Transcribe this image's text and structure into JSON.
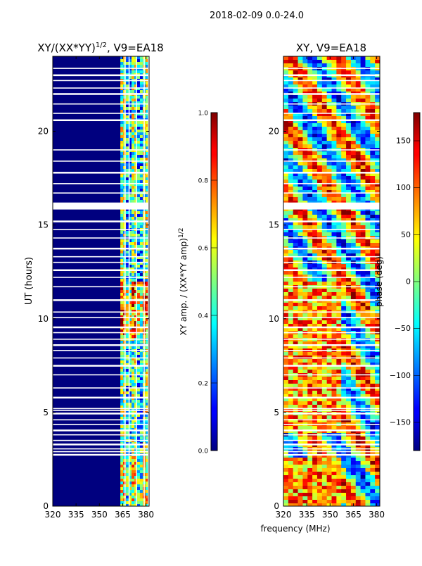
{
  "chart_data": [
    {
      "type": "heatmap",
      "title": "XY/(XX*YY)",
      "title_exponent": "1/2",
      "title_suffix": ", V9=EA18",
      "xlabel": "frequency (MHz)",
      "ylabel": "UT (hours)",
      "xlim": [
        320,
        382
      ],
      "ylim": [
        0,
        24
      ],
      "x_ticks": [
        "320",
        "335",
        "350",
        "365",
        "380"
      ],
      "x_tick_values": [
        320,
        335,
        350,
        365,
        380
      ],
      "y_ticks": [
        "0",
        "5",
        "10",
        "15",
        "20"
      ],
      "y_tick_values": [
        0,
        5,
        10,
        15,
        20
      ],
      "colorbar": {
        "label": "XY amp. / (XX*YY amp)",
        "label_exponent": "1/2",
        "range": [
          0.0,
          1.0
        ],
        "ticks": [
          "0.0",
          "0.2",
          "0.4",
          "0.6",
          "0.8",
          "1.0"
        ],
        "tick_values": [
          0.0,
          0.2,
          0.4,
          0.6,
          0.8,
          1.0
        ],
        "colormap": "jet"
      }
    },
    {
      "type": "heatmap",
      "title": "XY, V9=EA18",
      "xlabel": "frequency (MHz)",
      "ylabel": "",
      "xlim": [
        320,
        382
      ],
      "ylim": [
        0,
        24
      ],
      "x_ticks": [
        "320",
        "335",
        "350",
        "365",
        "380"
      ],
      "x_tick_values": [
        320,
        335,
        350,
        365,
        380
      ],
      "y_ticks": [
        "0",
        "5",
        "10",
        "15",
        "20"
      ],
      "y_tick_values": [
        0,
        5,
        10,
        15,
        20
      ],
      "colorbar": {
        "label": "phase (deg)",
        "range": [
          -180,
          180
        ],
        "ticks": [
          "−150",
          "−100",
          "−50",
          "0",
          "50",
          "100",
          "150"
        ],
        "tick_values": [
          -150,
          -100,
          -50,
          0,
          50,
          100,
          150
        ],
        "colormap": "jet"
      }
    }
  ],
  "figure": {
    "suptitle": "2018-02-09 0.0-24.0",
    "xlabel": "frequency (MHz)"
  },
  "gap_hours_utc": [
    2.75,
    2.9,
    3.05,
    3.3,
    3.5,
    3.8,
    4.05,
    4.35,
    4.6,
    4.95,
    5.1,
    5.2,
    5.8,
    6.3,
    7.0,
    7.5,
    7.9,
    8.3,
    8.6,
    8.9,
    9.25,
    9.55,
    10.05,
    10.35,
    11.0,
    11.7,
    12.2,
    12.6,
    13.0,
    13.3,
    13.75,
    14.3,
    14.75,
    15.2,
    15.85,
    16.05,
    16.15,
    16.7,
    17.2,
    17.8,
    18.4,
    19.0,
    20.6,
    20.95,
    21.45,
    22.0,
    22.3,
    22.7,
    23.0,
    23.35
  ]
}
